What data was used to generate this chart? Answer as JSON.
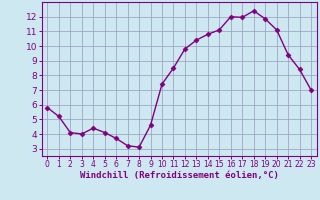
{
  "x": [
    0,
    1,
    2,
    3,
    4,
    5,
    6,
    7,
    8,
    9,
    10,
    11,
    12,
    13,
    14,
    15,
    16,
    17,
    18,
    19,
    20,
    21,
    22,
    23
  ],
  "y": [
    5.8,
    5.2,
    4.1,
    4.0,
    4.4,
    4.1,
    3.7,
    3.2,
    3.1,
    4.6,
    7.4,
    8.5,
    9.8,
    10.4,
    10.8,
    11.1,
    12.0,
    11.95,
    12.4,
    11.85,
    11.1,
    9.4,
    8.4,
    7.0
  ],
  "line_color": "#800080",
  "marker": "D",
  "marker_size": 2.5,
  "xlabel": "Windchill (Refroidissement éolien,°C)",
  "xlim": [
    -0.5,
    23.5
  ],
  "ylim": [
    2.5,
    13.0
  ],
  "yticks": [
    3,
    4,
    5,
    6,
    7,
    8,
    9,
    10,
    11,
    12
  ],
  "xticks": [
    0,
    1,
    2,
    3,
    4,
    5,
    6,
    7,
    8,
    9,
    10,
    11,
    12,
    13,
    14,
    15,
    16,
    17,
    18,
    19,
    20,
    21,
    22,
    23
  ],
  "bg_color": "#cde8f0",
  "grid_color": "#9999bb",
  "line_width": 1.0,
  "tick_color": "#800080",
  "label_color": "#800080",
  "ytick_fontsize": 6.5,
  "xtick_fontsize": 5.5,
  "xlabel_fontsize": 6.5,
  "spine_color": "#800080"
}
